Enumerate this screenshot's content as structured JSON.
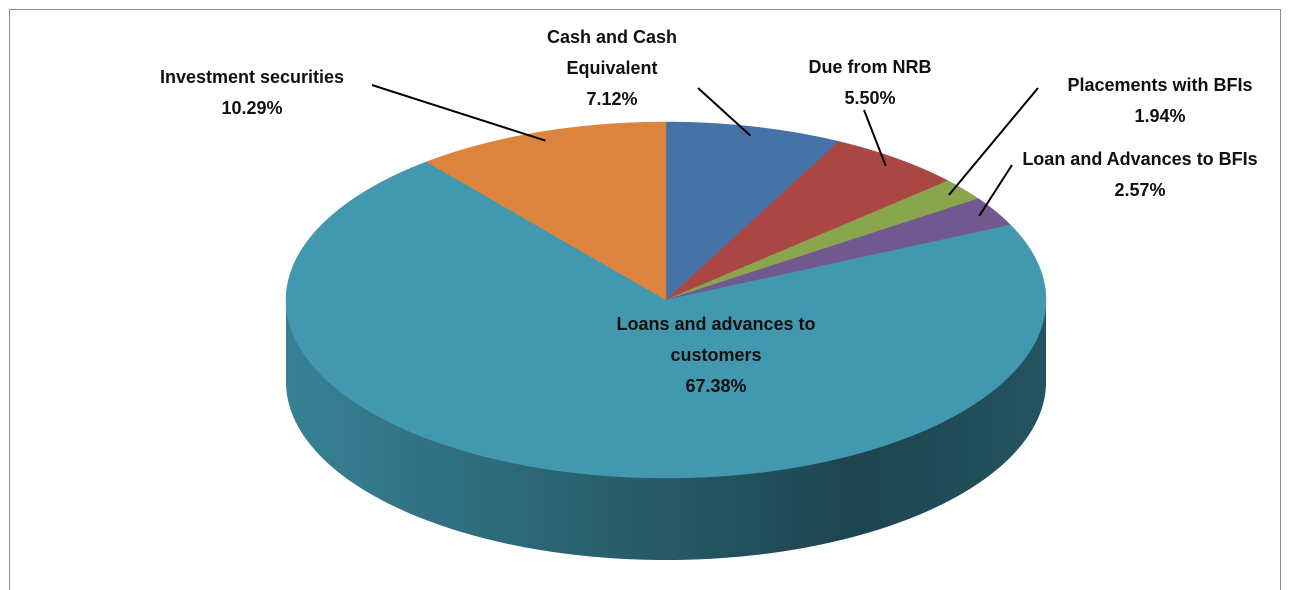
{
  "chart_data": {
    "type": "pie3d",
    "categories": [
      "Cash and Cash Equivalent",
      "Due from NRB",
      "Placements with BFIs",
      "Loan and Advances to BFIs",
      "Loans and advances to customers",
      "Investment securities"
    ],
    "values": [
      7.12,
      5.5,
      1.94,
      2.57,
      67.38,
      10.29
    ],
    "value_labels": [
      "7.12%",
      "5.50%",
      "1.94%",
      "2.57%",
      "67.38%",
      "10.29%"
    ],
    "colors": [
      "#4572a7",
      "#aa4643",
      "#89a54e",
      "#71588f",
      "#4198af",
      "#db843d"
    ]
  }
}
